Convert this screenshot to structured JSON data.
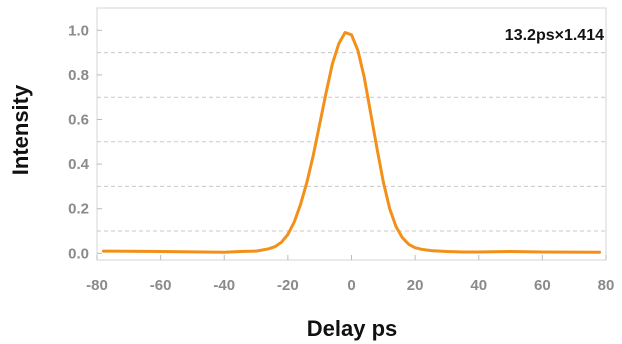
{
  "chart_data": {
    "type": "line",
    "title": "",
    "xlabel": "Delay ps",
    "ylabel": "Intensity",
    "annotation": "13.2ps×1.414",
    "xlim": [
      -80,
      80
    ],
    "ylim": [
      -0.03,
      1.1
    ],
    "x_ticks": [
      -80,
      -60,
      -40,
      -20,
      0,
      20,
      40,
      60,
      80
    ],
    "x_tick_labels": [
      "-80",
      "-60",
      "-40",
      "-20",
      "0",
      "20",
      "40",
      "60",
      "80"
    ],
    "y_ticks": [
      0.0,
      0.2,
      0.4,
      0.6,
      0.8,
      1.0
    ],
    "y_tick_labels": [
      "0.0",
      "0.2",
      "0.4",
      "0.6",
      "0.8",
      "1.0"
    ],
    "gridlines_y": [
      0.1,
      0.3,
      0.5,
      0.7,
      0.9
    ],
    "grid": "dashed horizontal",
    "line_color": "#f39019",
    "series": [
      {
        "x": [
          -78,
          -60,
          -40,
          -35,
          -30,
          -26,
          -24,
          -22,
          -20,
          -18,
          -16,
          -14,
          -12,
          -10,
          -8,
          -6,
          -4,
          -2,
          0,
          2,
          4,
          6,
          8,
          10,
          12,
          14,
          16,
          18,
          20,
          22,
          25,
          30,
          35,
          40,
          50,
          60,
          78
        ],
        "y": [
          0.01,
          0.008,
          0.005,
          0.008,
          0.01,
          0.02,
          0.03,
          0.05,
          0.085,
          0.14,
          0.22,
          0.32,
          0.44,
          0.58,
          0.72,
          0.85,
          0.94,
          0.99,
          0.98,
          0.91,
          0.79,
          0.63,
          0.47,
          0.32,
          0.2,
          0.12,
          0.07,
          0.04,
          0.025,
          0.018,
          0.012,
          0.008,
          0.006,
          0.006,
          0.008,
          0.006,
          0.005
        ]
      }
    ]
  }
}
